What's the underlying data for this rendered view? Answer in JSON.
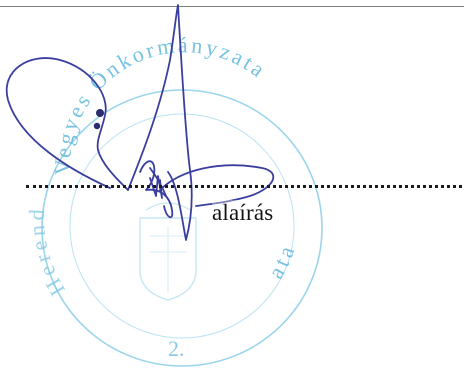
{
  "document": {
    "signature_label": "alaírás"
  },
  "stamp": {
    "top_text": "Vegyes Önkormányzata",
    "left_text": "Herend",
    "right_text": "ata",
    "number": "2.",
    "color": "#5fb8dc"
  },
  "signature": {
    "ink_color": "#3a3f9e"
  },
  "colors": {
    "rule": "#7d7d7d",
    "text": "#141414"
  }
}
